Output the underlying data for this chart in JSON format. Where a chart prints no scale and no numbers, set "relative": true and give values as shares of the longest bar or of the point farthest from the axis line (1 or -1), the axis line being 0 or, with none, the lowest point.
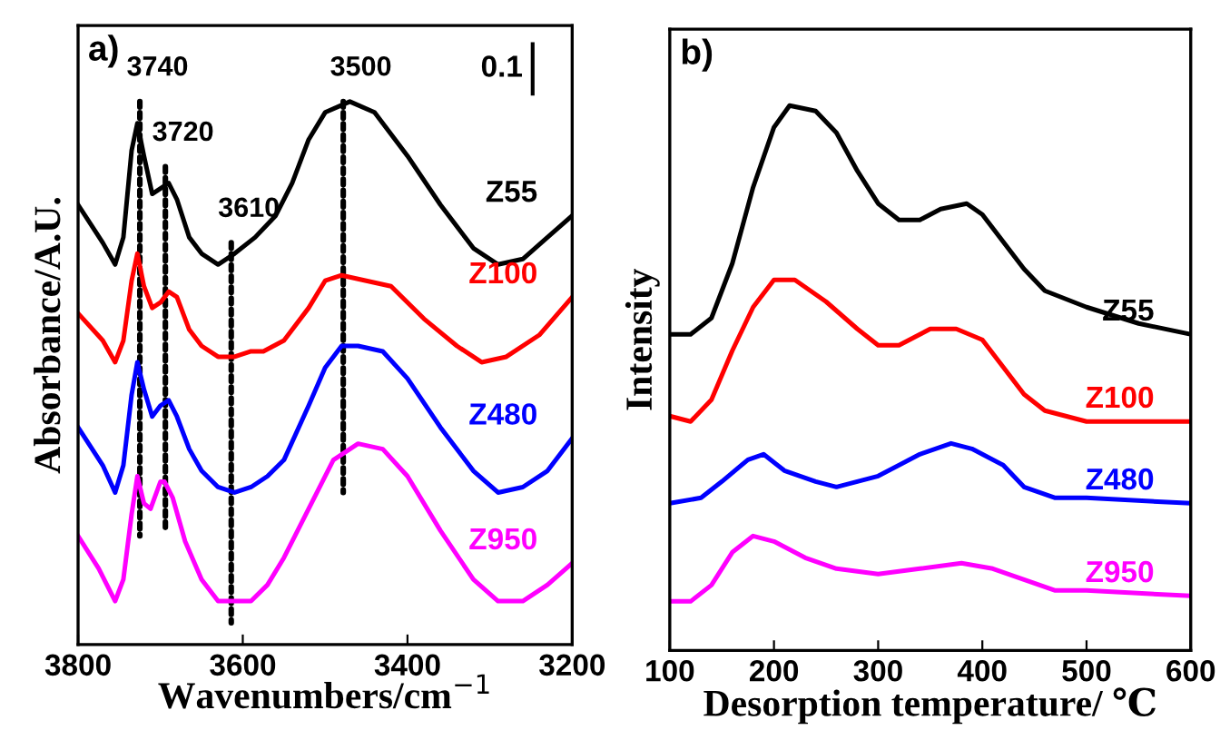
{
  "chart_data": [
    {
      "type": "line",
      "relative": true,
      "xlabel": "Wavenumbers/cm$^{−1}$",
      "ylabel": "Absorbance/A.U.",
      "xlim": [
        3800,
        3200
      ],
      "xticks": [
        3800,
        3600,
        3400,
        3200
      ],
      "annotations": [
        "a)",
        "0.1",
        {
          "text": "3740",
          "x": 3725,
          "y": 1.0
        },
        {
          "text": "3720",
          "x": 3694,
          "y": 0.88
        },
        {
          "text": "3610",
          "x": 3614,
          "y": 0.74
        },
        {
          "text": "3500",
          "x": 3478,
          "y": 1.0
        }
      ],
      "series": [
        {
          "name": "Z55",
          "color": "#000000",
          "x": [
            3800,
            3770,
            3755,
            3745,
            3735,
            3728,
            3720,
            3710,
            3700,
            3690,
            3680,
            3665,
            3650,
            3630,
            3610,
            3585,
            3560,
            3540,
            3520,
            3500,
            3470,
            3440,
            3400,
            3360,
            3320,
            3290,
            3260,
            3230,
            3200
          ],
          "values": [
            0.81,
            0.74,
            0.7,
            0.75,
            0.91,
            0.96,
            0.9,
            0.83,
            0.84,
            0.85,
            0.82,
            0.75,
            0.72,
            0.7,
            0.72,
            0.75,
            0.79,
            0.85,
            0.93,
            0.98,
            1.0,
            0.98,
            0.9,
            0.81,
            0.73,
            0.7,
            0.71,
            0.75,
            0.79
          ]
        },
        {
          "name": "Z100",
          "color": "#ff0000",
          "x": [
            3800,
            3770,
            3755,
            3745,
            3735,
            3728,
            3720,
            3710,
            3700,
            3690,
            3680,
            3665,
            3650,
            3630,
            3610,
            3590,
            3575,
            3550,
            3520,
            3500,
            3480,
            3450,
            3420,
            3380,
            3340,
            3310,
            3280,
            3240,
            3200
          ],
          "values": [
            0.61,
            0.56,
            0.52,
            0.56,
            0.67,
            0.72,
            0.66,
            0.62,
            0.63,
            0.65,
            0.64,
            0.58,
            0.55,
            0.53,
            0.53,
            0.54,
            0.54,
            0.56,
            0.62,
            0.67,
            0.68,
            0.67,
            0.66,
            0.6,
            0.55,
            0.52,
            0.53,
            0.57,
            0.64
          ]
        },
        {
          "name": "Z480",
          "color": "#0000ff",
          "x": [
            3800,
            3770,
            3755,
            3745,
            3735,
            3728,
            3720,
            3710,
            3700,
            3690,
            3680,
            3665,
            3650,
            3630,
            3610,
            3590,
            3570,
            3550,
            3520,
            3500,
            3480,
            3460,
            3430,
            3400,
            3360,
            3320,
            3290,
            3260,
            3230,
            3200
          ],
          "values": [
            0.4,
            0.33,
            0.28,
            0.33,
            0.46,
            0.52,
            0.47,
            0.42,
            0.44,
            0.45,
            0.42,
            0.36,
            0.32,
            0.29,
            0.28,
            0.29,
            0.31,
            0.34,
            0.44,
            0.51,
            0.55,
            0.55,
            0.54,
            0.49,
            0.4,
            0.32,
            0.28,
            0.29,
            0.32,
            0.38
          ]
        },
        {
          "name": "Z950",
          "color": "#ff00ff",
          "x": [
            3800,
            3775,
            3755,
            3745,
            3735,
            3728,
            3720,
            3712,
            3700,
            3695,
            3685,
            3670,
            3650,
            3630,
            3610,
            3590,
            3570,
            3550,
            3520,
            3490,
            3460,
            3430,
            3400,
            3360,
            3320,
            3290,
            3260,
            3230,
            3200
          ],
          "values": [
            0.2,
            0.14,
            0.08,
            0.12,
            0.24,
            0.31,
            0.26,
            0.25,
            0.3,
            0.3,
            0.27,
            0.19,
            0.12,
            0.08,
            0.08,
            0.08,
            0.11,
            0.16,
            0.25,
            0.34,
            0.37,
            0.36,
            0.31,
            0.21,
            0.12,
            0.08,
            0.08,
            0.11,
            0.15
          ]
        },
        {
          "color": "#000000",
          "line_style": "dotted",
          "x": [
            3725,
            3725
          ],
          "values": [
            1.0,
            0.2
          ]
        },
        {
          "color": "#000000",
          "line_style": "dotted",
          "x": [
            3694,
            3694
          ],
          "values": [
            0.88,
            0.21
          ]
        },
        {
          "color": "#000000",
          "line_style": "dotted",
          "x": [
            3614,
            3614
          ],
          "values": [
            0.74,
            0.04
          ]
        },
        {
          "color": "#000000",
          "line_style": "dotted",
          "x": [
            3478,
            3478
          ],
          "values": [
            1.0,
            0.28
          ]
        }
      ]
    },
    {
      "type": "line",
      "relative": true,
      "xlabel": "Desorption temperature/ ℃",
      "ylabel": "Intensity",
      "xlim": [
        100,
        600
      ],
      "xticks": [
        100,
        200,
        300,
        400,
        500,
        600
      ],
      "annotations": [
        "b)"
      ],
      "series": [
        {
          "name": "Z55",
          "color": "#000000",
          "x": [
            100,
            120,
            140,
            160,
            180,
            200,
            215,
            240,
            260,
            280,
            300,
            320,
            340,
            360,
            385,
            400,
            420,
            440,
            460,
            500,
            550,
            600
          ],
          "values": [
            0.58,
            0.58,
            0.61,
            0.71,
            0.85,
            0.96,
            1.0,
            0.99,
            0.95,
            0.88,
            0.82,
            0.79,
            0.79,
            0.81,
            0.82,
            0.8,
            0.75,
            0.7,
            0.66,
            0.63,
            0.6,
            0.58
          ]
        },
        {
          "name": "Z100",
          "color": "#ff0000",
          "x": [
            100,
            120,
            140,
            160,
            180,
            200,
            220,
            250,
            280,
            300,
            320,
            350,
            375,
            400,
            420,
            440,
            460,
            500,
            550,
            600
          ],
          "values": [
            0.43,
            0.42,
            0.46,
            0.55,
            0.63,
            0.68,
            0.68,
            0.64,
            0.59,
            0.56,
            0.56,
            0.59,
            0.59,
            0.57,
            0.52,
            0.47,
            0.44,
            0.42,
            0.42,
            0.42
          ]
        },
        {
          "name": "Z480",
          "color": "#0000ff",
          "x": [
            100,
            130,
            150,
            175,
            190,
            210,
            240,
            260,
            300,
            340,
            370,
            390,
            420,
            440,
            470,
            500,
            600
          ],
          "values": [
            0.27,
            0.28,
            0.31,
            0.35,
            0.36,
            0.33,
            0.31,
            0.3,
            0.32,
            0.36,
            0.38,
            0.37,
            0.34,
            0.3,
            0.28,
            0.28,
            0.27
          ]
        },
        {
          "name": "Z950",
          "color": "#ff00ff",
          "x": [
            100,
            120,
            140,
            160,
            180,
            200,
            230,
            260,
            300,
            340,
            380,
            410,
            440,
            470,
            500,
            600
          ],
          "values": [
            0.09,
            0.09,
            0.12,
            0.18,
            0.21,
            0.2,
            0.17,
            0.15,
            0.14,
            0.15,
            0.16,
            0.15,
            0.13,
            0.11,
            0.11,
            0.1
          ]
        }
      ]
    }
  ]
}
